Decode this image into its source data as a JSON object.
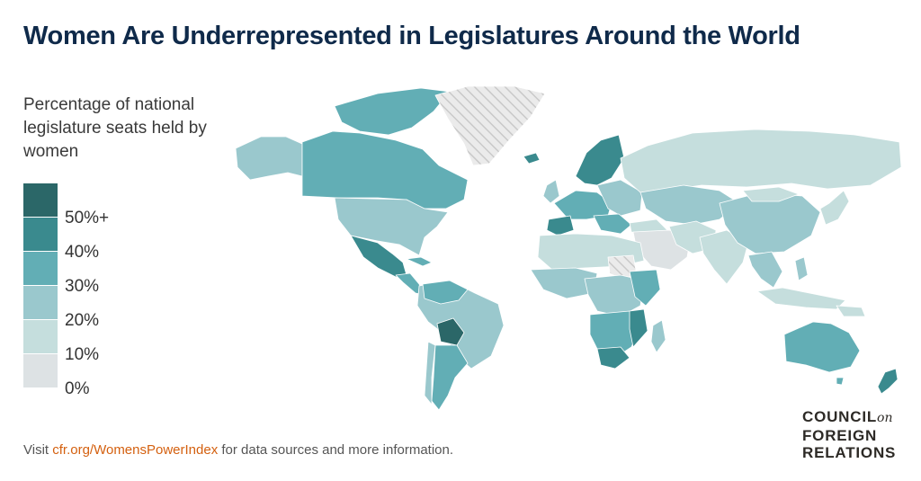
{
  "title": "Women Are Underrepresented in Legislatures Around the World",
  "legend": {
    "title": "Percentage of national legislature seats held by women",
    "labels": [
      "50%+",
      "40%",
      "30%",
      "20%",
      "10%",
      "0%"
    ]
  },
  "colors": {
    "c50": "#2b6768",
    "c40": "#3a8a8e",
    "c30": "#62aeb5",
    "c20": "#9ac8cd",
    "c10": "#c5dedd",
    "c0": "#dde2e4",
    "nodata": "#e6e6e6"
  },
  "footer": {
    "prefix": "Visit ",
    "link": "cfr.org/WomensPowerIndex",
    "suffix": " for data sources and more information."
  },
  "logo": {
    "line1": "COUNCIL",
    "on": "on",
    "line2": "FOREIGN",
    "line3": "RELATIONS"
  }
}
